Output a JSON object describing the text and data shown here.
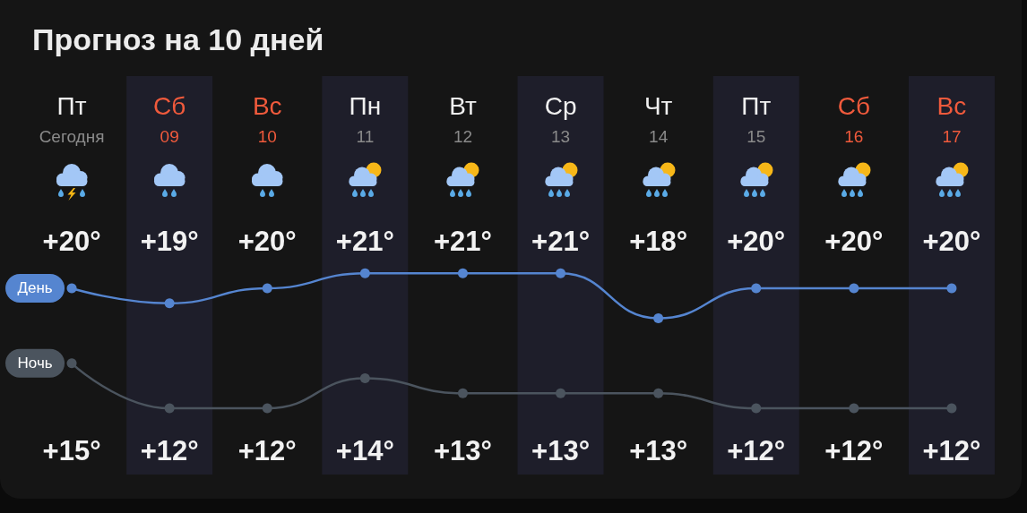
{
  "chart_data": {
    "type": "line",
    "title": "Прогноз на 10 дней",
    "categories": [
      "Пт\nСегодня",
      "Сб\n09",
      "Вс\n10",
      "Пн\n11",
      "Вт\n12",
      "Ср\n13",
      "Чт\n14",
      "Пт\n15",
      "Сб\n16",
      "Вс\n17"
    ],
    "series": [
      {
        "name": "День",
        "color": "#5585d0",
        "values": [
          20,
          19,
          20,
          21,
          21,
          21,
          18,
          20,
          20,
          20
        ],
        "value_labels": [
          "+20°",
          "+19°",
          "+20°",
          "+21°",
          "+21°",
          "+21°",
          "+18°",
          "+20°",
          "+20°",
          "+20°"
        ]
      },
      {
        "name": "Ночь",
        "color": "#4b545e",
        "values": [
          15,
          12,
          12,
          14,
          13,
          13,
          13,
          12,
          12,
          12
        ],
        "value_labels": [
          "+15°",
          "+12°",
          "+12°",
          "+14°",
          "+13°",
          "+13°",
          "+13°",
          "+12°",
          "+12°",
          "+12°"
        ]
      }
    ],
    "bands": [
      {
        "axis": "x",
        "from": "Сб\n09",
        "to": "Сб\n09",
        "color": "#1e1e2a"
      },
      {
        "axis": "x",
        "from": "Пн\n11",
        "to": "Пн\n11",
        "color": "#1e1e2a"
      },
      {
        "axis": "x",
        "from": "Ср\n13",
        "to": "Ср\n13",
        "color": "#1e1e2a"
      },
      {
        "axis": "x",
        "from": "Пт\n15",
        "to": "Пт\n15",
        "color": "#1e1e2a"
      },
      {
        "axis": "x",
        "from": "Вс\n17",
        "to": "Вс\n17",
        "color": "#1e1e2a"
      }
    ],
    "marker": "circle",
    "line_style": "solid"
  }
}
